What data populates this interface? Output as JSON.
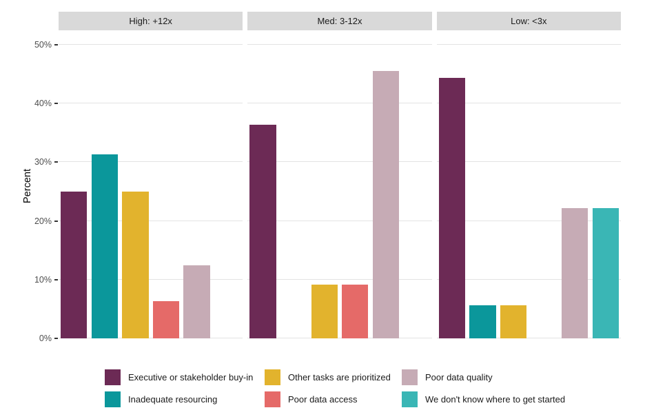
{
  "chart_data": {
    "type": "bar",
    "title": "",
    "xlabel": "",
    "ylabel": "Percent",
    "ylim": [
      0,
      50
    ],
    "ytick_labels": [
      "0%",
      "10%",
      "20%",
      "30%",
      "40%",
      "50%"
    ],
    "grid": true,
    "legend_position": "bottom",
    "categories": [
      "Executive or stakeholder buy-in",
      "Inadequate resourcing",
      "Other tasks are prioritized",
      "Poor data access",
      "Poor data quality",
      "We don't know where to get started"
    ],
    "colors": [
      "#6C2A55",
      "#0B979B",
      "#E2B32D",
      "#E56A68",
      "#C6ABB5",
      "#3AB6B5"
    ],
    "facets": [
      {
        "label": "High: +12x",
        "values": [
          25.0,
          31.3,
          25.0,
          6.3,
          12.5,
          null
        ]
      },
      {
        "label": "Med: 3-12x",
        "values": [
          36.4,
          null,
          9.1,
          9.1,
          45.5,
          null
        ]
      },
      {
        "label": "Low: <3x",
        "values": [
          44.4,
          5.6,
          5.6,
          null,
          22.2,
          22.2
        ]
      }
    ]
  }
}
